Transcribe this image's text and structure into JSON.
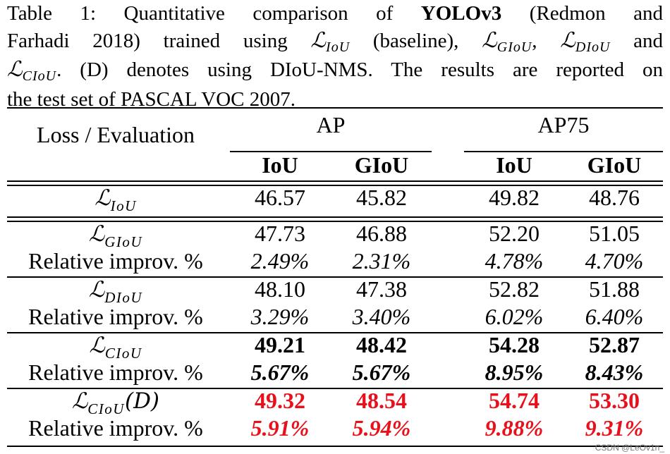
{
  "caption": {
    "prefix": "Table 1: Quantitative comparison of ",
    "model": "YOLOv3",
    "ref": " (Redmon and",
    "line2_a": "Farhadi 2018) trained using ",
    "baseline": " (baseline), ",
    "and": " and",
    "line3_rest": ". (D) denotes using DIoU-NMS. The results are reported on",
    "line4": "the test set of PASCAL VOC 2007."
  },
  "math": {
    "L": "ℒ",
    "iou": "IoU",
    "giou": "GIoU",
    "diou": "DIoU",
    "ciou": "CIoU",
    "comma": ",",
    "d_suffix": "(D)"
  },
  "header": {
    "loss_eval": "Loss / Evaluation",
    "ap": "AP",
    "ap75": "AP75",
    "cols": [
      "IoU",
      "GIoU",
      "IoU",
      "GIoU"
    ]
  },
  "rows": {
    "iou": [
      "46.57",
      "45.82",
      "49.82",
      "48.76"
    ],
    "giou": [
      "47.73",
      "46.88",
      "52.20",
      "51.05"
    ],
    "giou_rel_label": "Relative improv. %",
    "giou_rel": [
      "2.49%",
      "2.31%",
      "4.78%",
      "4.70%"
    ],
    "diou": [
      "48.10",
      "47.38",
      "52.82",
      "51.88"
    ],
    "diou_rel_label": "Relative improv. %",
    "diou_rel": [
      "3.29%",
      "3.40%",
      "6.02%",
      "6.40%"
    ],
    "ciou": [
      "49.21",
      "48.42",
      "54.28",
      "52.87"
    ],
    "ciou_rel_label": "Relative improv. %",
    "ciou_rel": [
      "5.67%",
      "5.67%",
      "8.95%",
      "8.43%"
    ],
    "ciou_d": [
      "49.32",
      "48.54",
      "54.74",
      "53.30"
    ],
    "ciou_d_rel_label": "Relative improv. %",
    "ciou_d_rel": [
      "5.91%",
      "5.94%",
      "9.88%",
      "9.31%"
    ]
  },
  "colors": {
    "highlight": "#e8111b"
  },
  "watermark": "CSDN @LeOv1n_"
}
